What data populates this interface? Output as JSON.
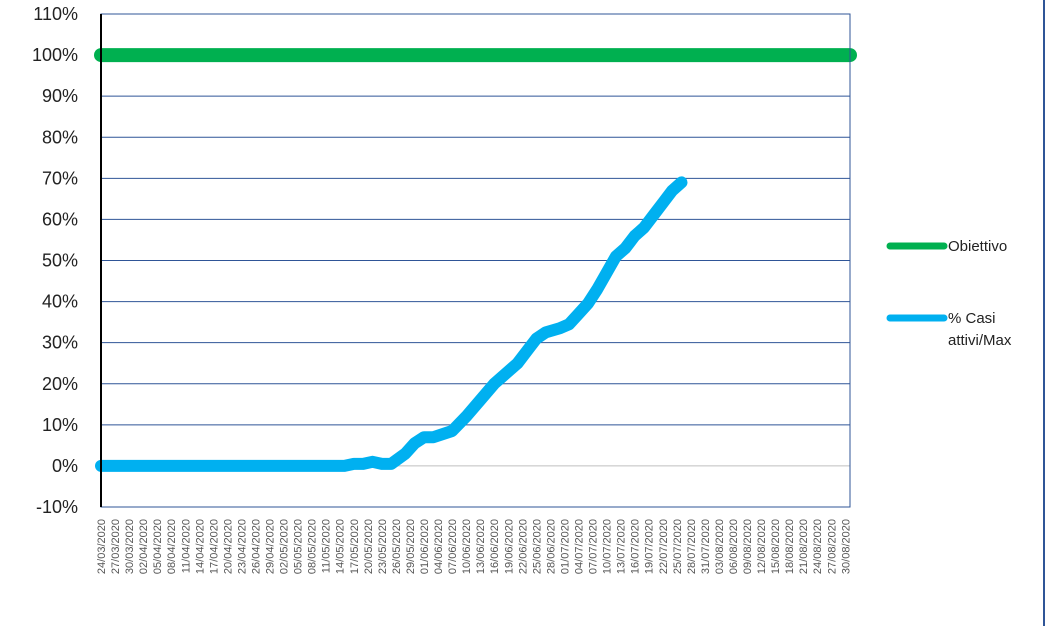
{
  "chart_data": {
    "type": "line",
    "title": "",
    "xlabel": "",
    "ylabel": "",
    "ylim": [
      -0.1,
      1.1
    ],
    "y_tick_step": 0.1,
    "y_format": "percent",
    "grid": true,
    "legend_position": "right",
    "x_start": "2020-03-24",
    "x_end": "2020-08-31",
    "x_tick_step_days": 3,
    "series": [
      {
        "name": "Obiettivo",
        "color": "#00B050",
        "points": [
          [
            "2020-03-24",
            1.0
          ],
          [
            "2020-08-31",
            1.0
          ]
        ]
      },
      {
        "name": "% Casi attivi/Max",
        "color": "#00B0F0",
        "points": [
          [
            "2020-03-24",
            0.0
          ],
          [
            "2020-04-30",
            0.0
          ],
          [
            "2020-05-15",
            0.0
          ],
          [
            "2020-05-17",
            0.005
          ],
          [
            "2020-05-19",
            0.005
          ],
          [
            "2020-05-21",
            0.01
          ],
          [
            "2020-05-23",
            0.005
          ],
          [
            "2020-05-25",
            0.005
          ],
          [
            "2020-05-28",
            0.03
          ],
          [
            "2020-05-30",
            0.055
          ],
          [
            "2020-06-01",
            0.07
          ],
          [
            "2020-06-03",
            0.07
          ],
          [
            "2020-06-07",
            0.085
          ],
          [
            "2020-06-10",
            0.12
          ],
          [
            "2020-06-13",
            0.16
          ],
          [
            "2020-06-16",
            0.2
          ],
          [
            "2020-06-19",
            0.23
          ],
          [
            "2020-06-21",
            0.25
          ],
          [
            "2020-06-23",
            0.28
          ],
          [
            "2020-06-25",
            0.31
          ],
          [
            "2020-06-27",
            0.325
          ],
          [
            "2020-06-30",
            0.335
          ],
          [
            "2020-07-02",
            0.345
          ],
          [
            "2020-07-04",
            0.37
          ],
          [
            "2020-07-06",
            0.395
          ],
          [
            "2020-07-08",
            0.43
          ],
          [
            "2020-07-10",
            0.47
          ],
          [
            "2020-07-12",
            0.51
          ],
          [
            "2020-07-14",
            0.53
          ],
          [
            "2020-07-16",
            0.56
          ],
          [
            "2020-07-18",
            0.58
          ],
          [
            "2020-07-20",
            0.61
          ],
          [
            "2020-07-22",
            0.64
          ],
          [
            "2020-07-24",
            0.67
          ],
          [
            "2020-07-26",
            0.69
          ]
        ]
      }
    ]
  }
}
